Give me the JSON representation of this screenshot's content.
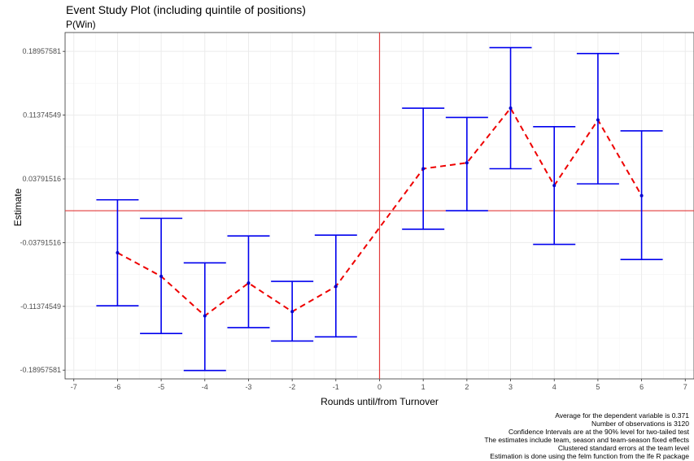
{
  "chart_data": {
    "type": "scatter",
    "title": "Event Study Plot (including quintile of positions)",
    "subtitle": "P(Win)",
    "xlabel": "Rounds until/from Turnover",
    "ylabel": "Estimate",
    "x_ticks": [
      -7,
      -6,
      -5,
      -4,
      -3,
      -2,
      -1,
      0,
      1,
      2,
      3,
      4,
      5,
      6,
      7
    ],
    "y_ticks": [
      -0.18957581,
      -0.11374549,
      -0.03791516,
      0.03791516,
      0.11374549,
      0.18957581
    ],
    "y_tick_labels": [
      "-0.18957581",
      "-0.11374549",
      "-0.03791516",
      "0.03791516",
      "0.11374549",
      "0.18957581"
    ],
    "xlim": [
      -7.2,
      7.2
    ],
    "ylim": [
      -0.2,
      0.212
    ],
    "grid": true,
    "reference_lines": {
      "x": 0,
      "y": 0
    },
    "series": [
      {
        "x": [
          -6,
          -5,
          -4,
          -3,
          -2,
          -1,
          1,
          2,
          3,
          4,
          5,
          6
        ],
        "estimate": [
          -0.05,
          -0.078,
          -0.125,
          -0.086,
          -0.12,
          -0.09,
          0.05,
          0.057,
          0.122,
          0.03,
          0.108,
          0.018
        ],
        "ci_low": [
          -0.113,
          -0.146,
          -0.19,
          -0.139,
          -0.155,
          -0.15,
          -0.022,
          0.0,
          0.05,
          -0.04,
          0.032,
          -0.058
        ],
        "ci_high": [
          0.013,
          -0.009,
          -0.062,
          -0.03,
          -0.084,
          -0.029,
          0.122,
          0.111,
          0.194,
          0.1,
          0.187,
          0.095
        ]
      }
    ],
    "colors": {
      "errorbar": "#0000ee",
      "point": "#0000cc",
      "trend": "#ee0000",
      "reference": "#e33b3b",
      "grid_major": "#ebebeb",
      "grid_minor": "#f5f5f5",
      "axis_text": "#4d4d4d"
    }
  },
  "notes": [
    "Average for the dependent variable is 0.371",
    "Number of observations is 3120",
    "Confidence Intervals are at the 90% level for two-tailed test",
    "The estimates include team, season and team-season fixed effects",
    "Clustered standard errors at the team level",
    "Estimation is done using the felm function from the lfe R package"
  ]
}
